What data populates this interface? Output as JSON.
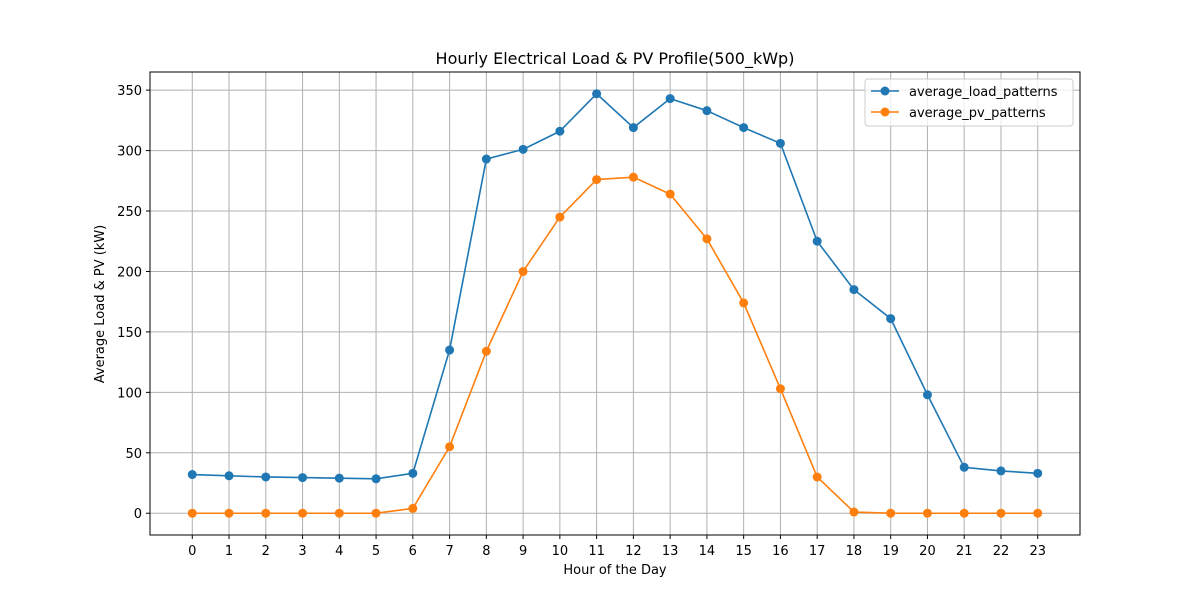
{
  "chart_data": {
    "type": "line",
    "title": "Hourly Electrical Load  & PV Profile(500_kWp)",
    "xlabel": "Hour of the Day",
    "ylabel": "Average Load & PV (kW)",
    "x": [
      0,
      1,
      2,
      3,
      4,
      5,
      6,
      7,
      8,
      9,
      10,
      11,
      12,
      13,
      14,
      15,
      16,
      17,
      18,
      19,
      20,
      21,
      22,
      23
    ],
    "xlim": [
      -1.15,
      24.15
    ],
    "ylim": [
      -18,
      365
    ],
    "yticks": [
      0,
      50,
      100,
      150,
      200,
      250,
      300,
      350
    ],
    "grid": true,
    "legend_position": "top-right",
    "markers": "circle",
    "series": [
      {
        "name": "average_load_patterns",
        "color": "#1f77b4",
        "values": [
          32,
          31,
          30,
          29.5,
          29,
          28.5,
          33,
          135,
          293,
          301,
          316,
          347,
          319,
          343,
          333,
          319,
          306,
          225,
          185,
          161,
          98,
          38,
          35,
          33
        ]
      },
      {
        "name": "average_pv_patterns",
        "color": "#ff7f0e",
        "values": [
          0,
          0,
          0,
          0,
          0,
          0,
          4,
          55,
          134,
          200,
          245,
          276,
          278,
          264,
          227,
          174,
          103,
          30,
          1,
          0,
          0,
          0,
          0,
          0
        ]
      }
    ]
  }
}
